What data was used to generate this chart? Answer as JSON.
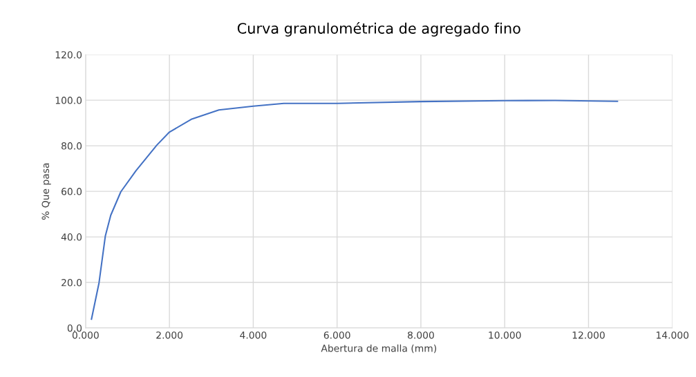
{
  "chart_data": {
    "type": "line",
    "title": "Curva granulométrica de agregado fino",
    "xlabel": "Abertura de malla (mm)",
    "ylabel": "% Que pasa",
    "series": [
      {
        "color": "#4472c4",
        "x": [
          0.14,
          0.32,
          0.47,
          0.6,
          0.84,
          1.2,
          1.7,
          2.0,
          2.52,
          3.18,
          4.0,
          4.73,
          6.0,
          8.0,
          10.0,
          11.2,
          12.69
        ],
        "values": [
          3.9,
          19.8,
          40.3,
          49.5,
          59.8,
          69.0,
          80.3,
          86.0,
          91.6,
          95.7,
          97.4,
          98.6,
          98.6,
          99.4,
          99.8,
          99.9,
          99.5
        ]
      }
    ],
    "xlim": [
      0,
      14
    ],
    "ylim": [
      0,
      120
    ],
    "xticks": [
      {
        "value": 0,
        "label": "0.000"
      },
      {
        "value": 2,
        "label": "2.000"
      },
      {
        "value": 4,
        "label": "4.000"
      },
      {
        "value": 6,
        "label": "6.000"
      },
      {
        "value": 8,
        "label": "8.000"
      },
      {
        "value": 10,
        "label": "10.000"
      },
      {
        "value": 12,
        "label": "12.000"
      },
      {
        "value": 14,
        "label": "14.000"
      }
    ],
    "yticks": [
      {
        "value": 0,
        "label": "0.0"
      },
      {
        "value": 20,
        "label": "20.0"
      },
      {
        "value": 40,
        "label": "40.0"
      },
      {
        "value": 60,
        "label": "60.0"
      },
      {
        "value": 80,
        "label": "80.0"
      },
      {
        "value": 100,
        "label": "100.0"
      },
      {
        "value": 120,
        "label": "120.0"
      }
    ],
    "grid": true,
    "legend": false
  }
}
